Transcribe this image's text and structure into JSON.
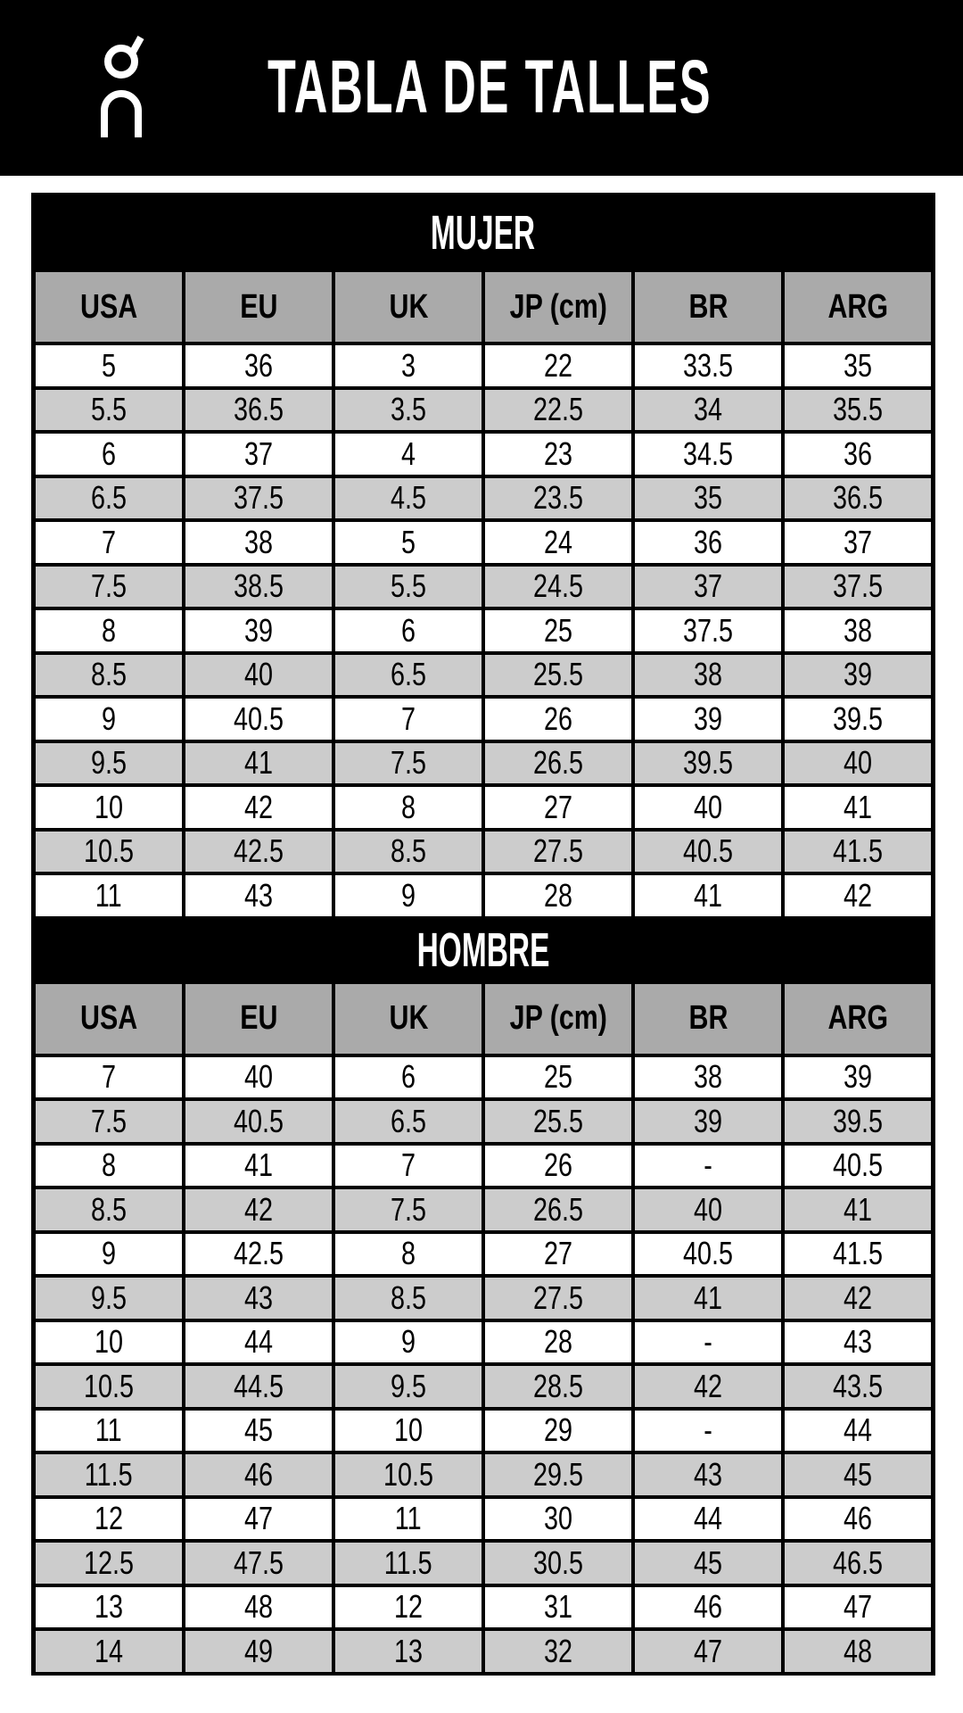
{
  "header": {
    "title": "TABLA DE TALLES",
    "logo": "On"
  },
  "columns": [
    "USA",
    "EU",
    "UK",
    "JP (cm)",
    "BR",
    "ARG"
  ],
  "colors": {
    "header_bg": "#000000",
    "column_header_bg": "#aaaaaa",
    "alt_row_bg": "#cccccc"
  },
  "sections": [
    {
      "title": "MUJER",
      "rows": [
        [
          "5",
          "36",
          "3",
          "22",
          "33.5",
          "35"
        ],
        [
          "5.5",
          "36.5",
          "3.5",
          "22.5",
          "34",
          "35.5"
        ],
        [
          "6",
          "37",
          "4",
          "23",
          "34.5",
          "36"
        ],
        [
          "6.5",
          "37.5",
          "4.5",
          "23.5",
          "35",
          "36.5"
        ],
        [
          "7",
          "38",
          "5",
          "24",
          "36",
          "37"
        ],
        [
          "7.5",
          "38.5",
          "5.5",
          "24.5",
          "37",
          "37.5"
        ],
        [
          "8",
          "39",
          "6",
          "25",
          "37.5",
          "38"
        ],
        [
          "8.5",
          "40",
          "6.5",
          "25.5",
          "38",
          "39"
        ],
        [
          "9",
          "40.5",
          "7",
          "26",
          "39",
          "39.5"
        ],
        [
          "9.5",
          "41",
          "7.5",
          "26.5",
          "39.5",
          "40"
        ],
        [
          "10",
          "42",
          "8",
          "27",
          "40",
          "41"
        ],
        [
          "10.5",
          "42.5",
          "8.5",
          "27.5",
          "40.5",
          "41.5"
        ],
        [
          "11",
          "43",
          "9",
          "28",
          "41",
          "42"
        ]
      ]
    },
    {
      "title": "HOMBRE",
      "rows": [
        [
          "7",
          "40",
          "6",
          "25",
          "38",
          "39"
        ],
        [
          "7.5",
          "40.5",
          "6.5",
          "25.5",
          "39",
          "39.5"
        ],
        [
          "8",
          "41",
          "7",
          "26",
          "-",
          "40.5"
        ],
        [
          "8.5",
          "42",
          "7.5",
          "26.5",
          "40",
          "41"
        ],
        [
          "9",
          "42.5",
          "8",
          "27",
          "40.5",
          "41.5"
        ],
        [
          "9.5",
          "43",
          "8.5",
          "27.5",
          "41",
          "42"
        ],
        [
          "10",
          "44",
          "9",
          "28",
          "-",
          "43"
        ],
        [
          "10.5",
          "44.5",
          "9.5",
          "28.5",
          "42",
          "43.5"
        ],
        [
          "11",
          "45",
          "10",
          "29",
          "-",
          "44"
        ],
        [
          "11.5",
          "46",
          "10.5",
          "29.5",
          "43",
          "45"
        ],
        [
          "12",
          "47",
          "11",
          "30",
          "44",
          "46"
        ],
        [
          "12.5",
          "47.5",
          "11.5",
          "30.5",
          "45",
          "46.5"
        ],
        [
          "13",
          "48",
          "12",
          "31",
          "46",
          "47"
        ],
        [
          "14",
          "49",
          "13",
          "32",
          "47",
          "48"
        ]
      ]
    }
  ]
}
